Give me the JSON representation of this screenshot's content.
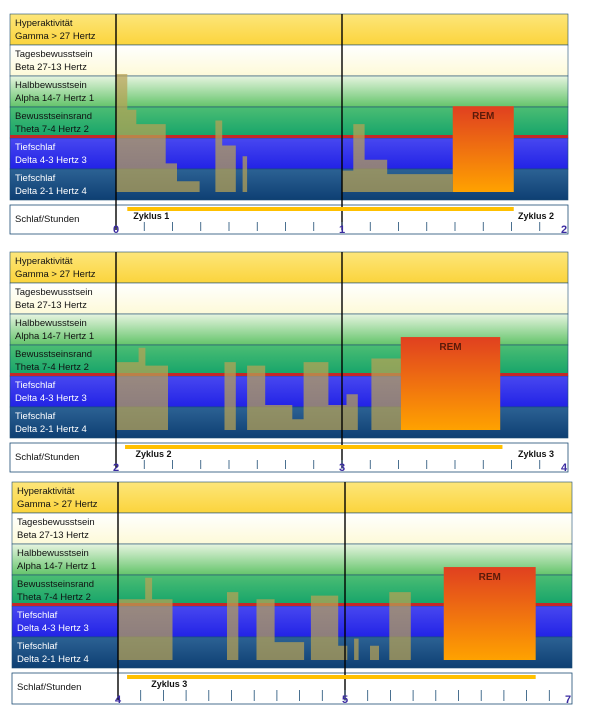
{
  "bands": [
    {
      "line1": "Hyperaktivität",
      "line2": "Gamma > 27 Hertz"
    },
    {
      "line1": "Tagesbewusstsein",
      "line2": "Beta 27-13 Hertz"
    },
    {
      "line1": "Halbbewusstsein",
      "line2": "Alpha 14-7 Hertz  1"
    },
    {
      "line1": "Bewusstseinsrand",
      "line2": "Theta 7-4 Hertz  2"
    },
    {
      "line1": "Tiefschlaf",
      "line2": "Delta  4-3 Hertz  3"
    },
    {
      "line1": "Tiefschlaf",
      "line2": "Delta  2-1 Hertz  4"
    }
  ],
  "axis_label": "Schlaf/Stunden",
  "rem_label": "REM",
  "colors": {
    "gamma": "#fbd43c",
    "beta": "#fdfad8",
    "alpha": "#63c46a",
    "theta": "#12a36a",
    "delta_deep": "#2222e6",
    "delta_deepest": "#0e3f73",
    "hypnogram": "#b9a254",
    "rem_top": "#e04020",
    "rem_bottom": "#ffa200",
    "cycle_bar": "#ffc000",
    "axis_numbers": "#3a2aa0",
    "border": "#1c4c74"
  },
  "chart_data": [
    {
      "type": "area",
      "hours": [
        0,
        1,
        2
      ],
      "cycle": {
        "label": "Zyklus  1",
        "start_hour": 0.05,
        "end_hour": 1.76,
        "label_hour": 0.05
      },
      "next_cycle": {
        "label": "Zyklus  2"
      },
      "rem": {
        "start_hour": 1.49,
        "end_hour": 1.76,
        "depth_top": 2.4
      },
      "hypnogram": [
        [
          0.0,
          3.3
        ],
        [
          0.05,
          3.3
        ],
        [
          0.05,
          2.3
        ],
        [
          0.09,
          2.3
        ],
        [
          0.09,
          1.9
        ],
        [
          0.22,
          1.9
        ],
        [
          0.22,
          0.8
        ],
        [
          0.27,
          0.8
        ],
        [
          0.27,
          0.3
        ],
        [
          0.37,
          0.3
        ],
        [
          0.37,
          0.0
        ],
        [
          0.44,
          0.0
        ],
        [
          0.44,
          2.0
        ],
        [
          0.47,
          2.0
        ],
        [
          0.47,
          1.3
        ],
        [
          0.53,
          1.3
        ],
        [
          0.53,
          0.0
        ],
        [
          0.56,
          0.0
        ],
        [
          0.56,
          1.0
        ],
        [
          0.58,
          1.0
        ],
        [
          0.58,
          0.0
        ],
        [
          1.0,
          0.0
        ],
        [
          1.0,
          0.6
        ],
        [
          1.05,
          0.6
        ],
        [
          1.05,
          1.9
        ],
        [
          1.1,
          1.9
        ],
        [
          1.1,
          0.9
        ],
        [
          1.2,
          0.9
        ],
        [
          1.2,
          0.5
        ],
        [
          1.49,
          0.5
        ],
        [
          1.49,
          0.0
        ]
      ]
    },
    {
      "type": "area",
      "hours": [
        2,
        3,
        4
      ],
      "cycle": {
        "label": "Zyklus  2",
        "start_hour": 2.04,
        "end_hour": 3.71,
        "label_hour": 2.06
      },
      "next_cycle": {
        "label": "Zyklus  3"
      },
      "rem": {
        "start_hour": 3.26,
        "end_hour": 3.7,
        "depth_top": 2.6
      },
      "hypnogram": [
        [
          2.0,
          1.9
        ],
        [
          2.1,
          1.9
        ],
        [
          2.1,
          2.3
        ],
        [
          2.13,
          2.3
        ],
        [
          2.13,
          1.8
        ],
        [
          2.23,
          1.8
        ],
        [
          2.23,
          0.0
        ],
        [
          2.48,
          0.0
        ],
        [
          2.48,
          1.9
        ],
        [
          2.53,
          1.9
        ],
        [
          2.53,
          0.0
        ],
        [
          2.58,
          0.0
        ],
        [
          2.58,
          1.8
        ],
        [
          2.66,
          1.8
        ],
        [
          2.66,
          0.7
        ],
        [
          2.78,
          0.7
        ],
        [
          2.78,
          0.3
        ],
        [
          2.83,
          0.3
        ],
        [
          2.83,
          1.9
        ],
        [
          2.94,
          1.9
        ],
        [
          2.94,
          0.7
        ],
        [
          3.02,
          0.7
        ],
        [
          3.02,
          1.0
        ],
        [
          3.07,
          1.0
        ],
        [
          3.07,
          0.0
        ],
        [
          3.13,
          0.0
        ],
        [
          3.13,
          2.0
        ],
        [
          3.26,
          2.0
        ],
        [
          3.26,
          0.0
        ]
      ]
    },
    {
      "type": "area",
      "hours": [
        4,
        5,
        7
      ],
      "cycle": {
        "label": "Zyklus  3",
        "start_hour": 4.04,
        "end_hour": 6.68,
        "label_hour": 4.12
      },
      "rem": {
        "start_hour": 5.87,
        "end_hour": 6.68,
        "depth_top": 2.6
      },
      "hypnogram": [
        [
          4.0,
          1.7
        ],
        [
          4.12,
          1.7
        ],
        [
          4.12,
          2.3
        ],
        [
          4.15,
          2.3
        ],
        [
          4.15,
          1.7
        ],
        [
          4.24,
          1.7
        ],
        [
          4.24,
          0.0
        ],
        [
          4.48,
          0.0
        ],
        [
          4.48,
          1.9
        ],
        [
          4.53,
          1.9
        ],
        [
          4.53,
          0.0
        ],
        [
          4.61,
          0.0
        ],
        [
          4.61,
          1.7
        ],
        [
          4.69,
          1.7
        ],
        [
          4.69,
          0.5
        ],
        [
          4.82,
          0.5
        ],
        [
          4.82,
          0.0
        ],
        [
          4.85,
          0.0
        ],
        [
          4.85,
          1.8
        ],
        [
          4.97,
          1.8
        ],
        [
          4.97,
          0.4
        ],
        [
          5.02,
          0.4
        ],
        [
          5.02,
          0.0
        ],
        [
          5.08,
          0.0
        ],
        [
          5.08,
          0.6
        ],
        [
          5.12,
          0.6
        ],
        [
          5.12,
          0.0
        ],
        [
          5.22,
          0.0
        ],
        [
          5.22,
          0.4
        ],
        [
          5.3,
          0.4
        ],
        [
          5.3,
          0.0
        ],
        [
          5.39,
          0.0
        ],
        [
          5.39,
          1.9
        ],
        [
          5.58,
          1.9
        ],
        [
          5.58,
          0.0
        ],
        [
          5.87,
          0.0
        ]
      ]
    }
  ]
}
